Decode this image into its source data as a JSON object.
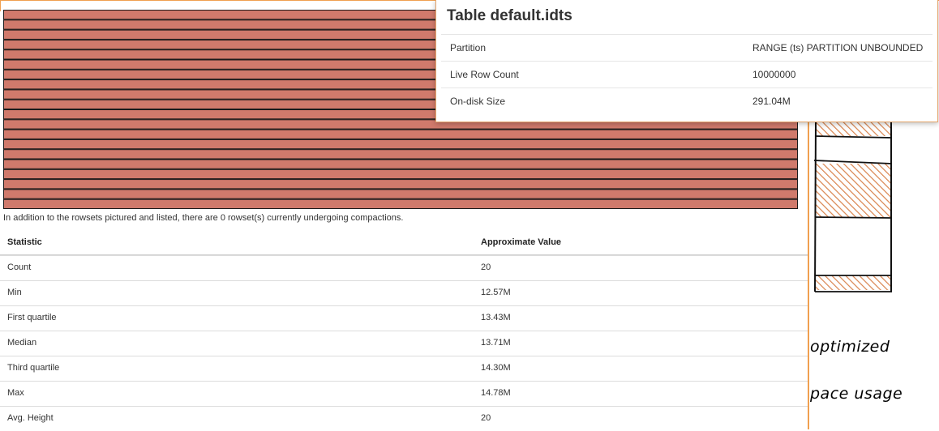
{
  "rowset_chart": {
    "rowset_count": 20,
    "fill_color": "#d07a6c",
    "line_color": "#1a1a1a"
  },
  "compaction_note": "In addition to the rowsets pictured and listed, there are 0 rowset(s) currently undergoing compactions.",
  "stats_table": {
    "headers": [
      "Statistic",
      "Approximate Value"
    ],
    "rows": [
      [
        "Count",
        "20"
      ],
      [
        "Min",
        "12.57M"
      ],
      [
        "First quartile",
        "13.43M"
      ],
      [
        "Median",
        "13.71M"
      ],
      [
        "Third quartile",
        "14.30M"
      ],
      [
        "Max",
        "14.78M"
      ],
      [
        "Avg. Height",
        "20"
      ]
    ]
  },
  "popover": {
    "title": "Table default.idts",
    "rows": [
      {
        "label": "Partition",
        "value": "RANGE (ts) PARTITION UNBOUNDED"
      },
      {
        "label": "Live Row Count",
        "value": "10000000"
      },
      {
        "label": "On-disk Size",
        "value": "291.04M"
      }
    ]
  },
  "sketch": {
    "hatch_color": "#d9844e",
    "text_1": "optimized",
    "text_2": "pace usage"
  }
}
